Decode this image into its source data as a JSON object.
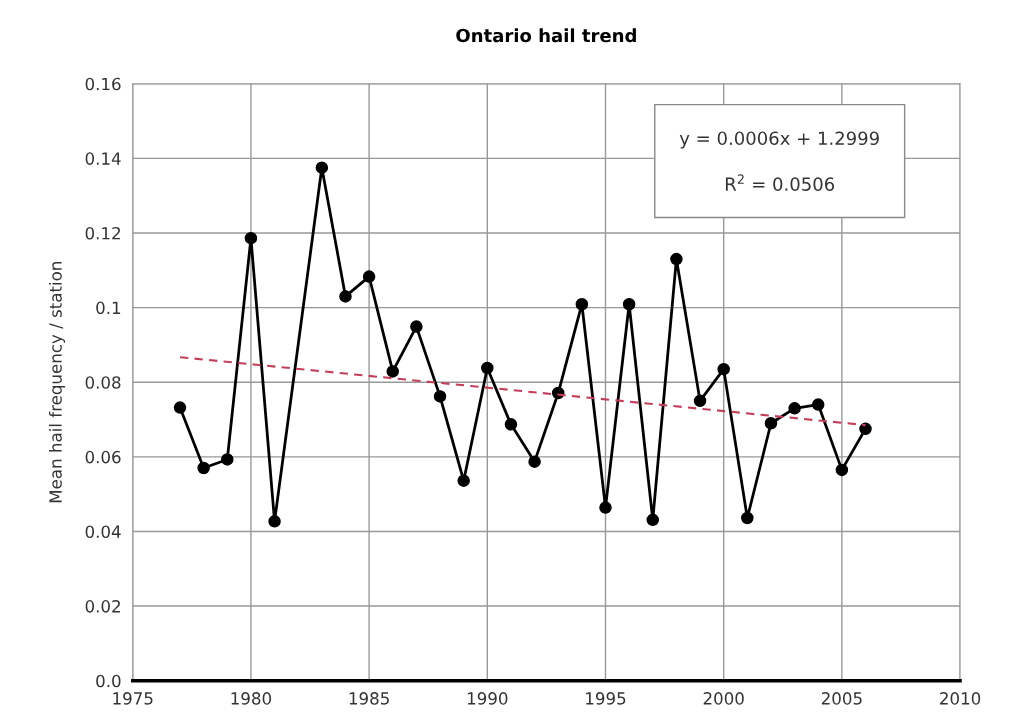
{
  "chart_data": {
    "type": "line",
    "title": "Ontario hail trend",
    "ylabel": "Mean hail frequency / station",
    "xlim": [
      1975,
      2010
    ],
    "xticks": [
      1975,
      1980,
      1985,
      1990,
      1995,
      2000,
      2005,
      2010
    ],
    "ylim": [
      0,
      0.16
    ],
    "yticks": [
      {
        "value": 0,
        "label": "0.0"
      },
      0.02,
      0.04,
      0.06,
      0.08,
      0.1,
      0.12,
      0.14,
      0.16
    ],
    "grid": true,
    "legend": false,
    "series": [
      {
        "color": "#000000",
        "marker": "circle",
        "line_style": "solid",
        "x": [
          1977,
          1978,
          1979,
          1980,
          1981,
          1983,
          1984,
          1985,
          1986,
          1987,
          1988,
          1989,
          1990,
          1991,
          1992,
          1993,
          1994,
          1995,
          1996,
          1997,
          1998,
          1999,
          2000,
          2001,
          2002,
          2003,
          2004,
          2005,
          2006
        ],
        "values": [
          0.0732,
          0.057,
          0.0593,
          0.1186,
          0.0427,
          0.1375,
          0.103,
          0.1083,
          0.0829,
          0.0949,
          0.0762,
          0.0536,
          0.0838,
          0.0687,
          0.0587,
          0.0771,
          0.1009,
          0.0464,
          0.1009,
          0.0431,
          0.113,
          0.075,
          0.0835,
          0.0436,
          0.069,
          0.073,
          0.074,
          0.0565,
          0.0675
        ]
      },
      {
        "color": "#c0405a",
        "marker": "none",
        "line_style": "dashed",
        "x": [
          1977,
          2006
        ],
        "values": [
          0.0867,
          0.0685
        ]
      }
    ],
    "annotations": [
      "y = 0.0006x + 1.2999",
      "R$^{2}$ = 0.0506"
    ]
  }
}
